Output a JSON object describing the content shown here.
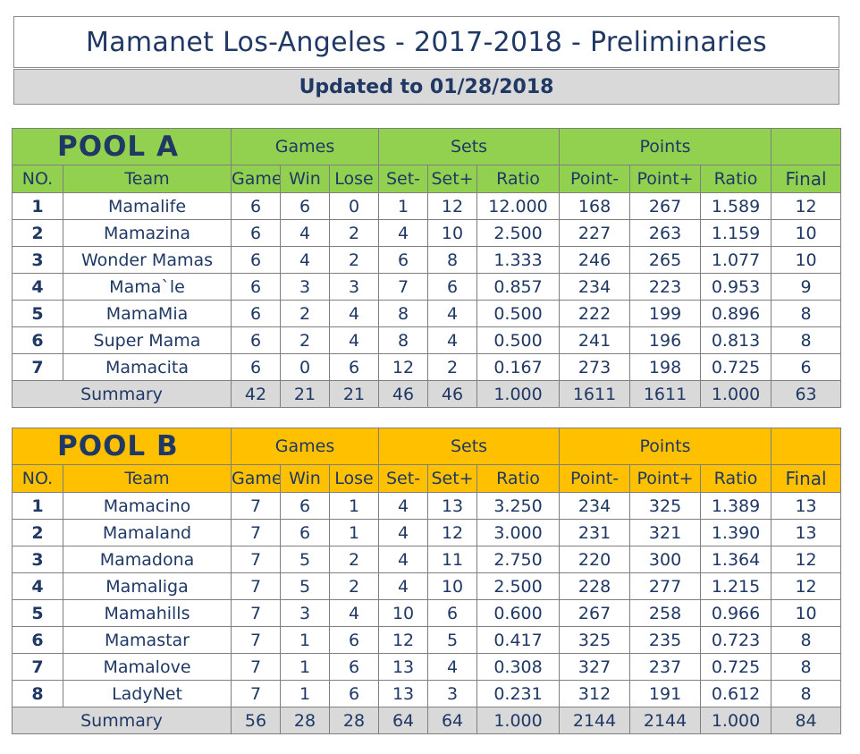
{
  "header": {
    "title": "Mamanet Los-Angeles - 2017-2018 - Preliminaries",
    "updated": "Updated to 01/28/2018"
  },
  "pools": [
    {
      "title": "POOL  A",
      "accent": "#92d050",
      "group_headers": {
        "games": "Games",
        "sets": "Sets",
        "points": "Points"
      },
      "columns": [
        "NO.",
        "Team",
        "Game",
        "Win",
        "Lose",
        "Set-",
        "Set+",
        "Ratio",
        "Point-",
        "Point+",
        "Ratio",
        "Final"
      ],
      "rows": [
        [
          "1",
          "Mamalife",
          "6",
          "6",
          "0",
          "1",
          "12",
          "12.000",
          "168",
          "267",
          "1.589",
          "12"
        ],
        [
          "2",
          "Mamazina",
          "6",
          "4",
          "2",
          "4",
          "10",
          "2.500",
          "227",
          "263",
          "1.159",
          "10"
        ],
        [
          "3",
          "Wonder Mamas",
          "6",
          "4",
          "2",
          "6",
          "8",
          "1.333",
          "246",
          "265",
          "1.077",
          "10"
        ],
        [
          "4",
          "Mama`le",
          "6",
          "3",
          "3",
          "7",
          "6",
          "0.857",
          "234",
          "223",
          "0.953",
          "9"
        ],
        [
          "5",
          "MamaMia",
          "6",
          "2",
          "4",
          "8",
          "4",
          "0.500",
          "222",
          "199",
          "0.896",
          "8"
        ],
        [
          "6",
          "Super Mama",
          "6",
          "2",
          "4",
          "8",
          "4",
          "0.500",
          "241",
          "196",
          "0.813",
          "8"
        ],
        [
          "7",
          "Mamacita",
          "6",
          "0",
          "6",
          "12",
          "2",
          "0.167",
          "273",
          "198",
          "0.725",
          "6"
        ]
      ],
      "summary": [
        "Summary",
        "42",
        "21",
        "21",
        "46",
        "46",
        "1.000",
        "1611",
        "1611",
        "1.000",
        "63"
      ]
    },
    {
      "title": "POOL  B",
      "accent": "#ffc000",
      "group_headers": {
        "games": "Games",
        "sets": "Sets",
        "points": "Points"
      },
      "columns": [
        "NO.",
        "Team",
        "Game",
        "Win",
        "Lose",
        "Set-",
        "Set+",
        "Ratio",
        "Point-",
        "Point+",
        "Ratio",
        "Final"
      ],
      "rows": [
        [
          "1",
          "Mamacino",
          "7",
          "6",
          "1",
          "4",
          "13",
          "3.250",
          "234",
          "325",
          "1.389",
          "13"
        ],
        [
          "2",
          "Mamaland",
          "7",
          "6",
          "1",
          "4",
          "12",
          "3.000",
          "231",
          "321",
          "1.390",
          "13"
        ],
        [
          "3",
          "Mamadona",
          "7",
          "5",
          "2",
          "4",
          "11",
          "2.750",
          "220",
          "300",
          "1.364",
          "12"
        ],
        [
          "4",
          "Mamaliga",
          "7",
          "5",
          "2",
          "4",
          "10",
          "2.500",
          "228",
          "277",
          "1.215",
          "12"
        ],
        [
          "5",
          "Mamahills",
          "7",
          "3",
          "4",
          "10",
          "6",
          "0.600",
          "267",
          "258",
          "0.966",
          "10"
        ],
        [
          "6",
          "Mamastar",
          "7",
          "1",
          "6",
          "12",
          "5",
          "0.417",
          "325",
          "235",
          "0.723",
          "8"
        ],
        [
          "7",
          "Mamalove",
          "7",
          "1",
          "6",
          "13",
          "4",
          "0.308",
          "327",
          "237",
          "0.725",
          "8"
        ],
        [
          "8",
          "LadyNet",
          "7",
          "1",
          "6",
          "13",
          "3",
          "0.231",
          "312",
          "191",
          "0.612",
          "8"
        ]
      ],
      "summary": [
        "Summary",
        "56",
        "28",
        "28",
        "64",
        "64",
        "1.000",
        "2144",
        "2144",
        "1.000",
        "84"
      ]
    }
  ]
}
